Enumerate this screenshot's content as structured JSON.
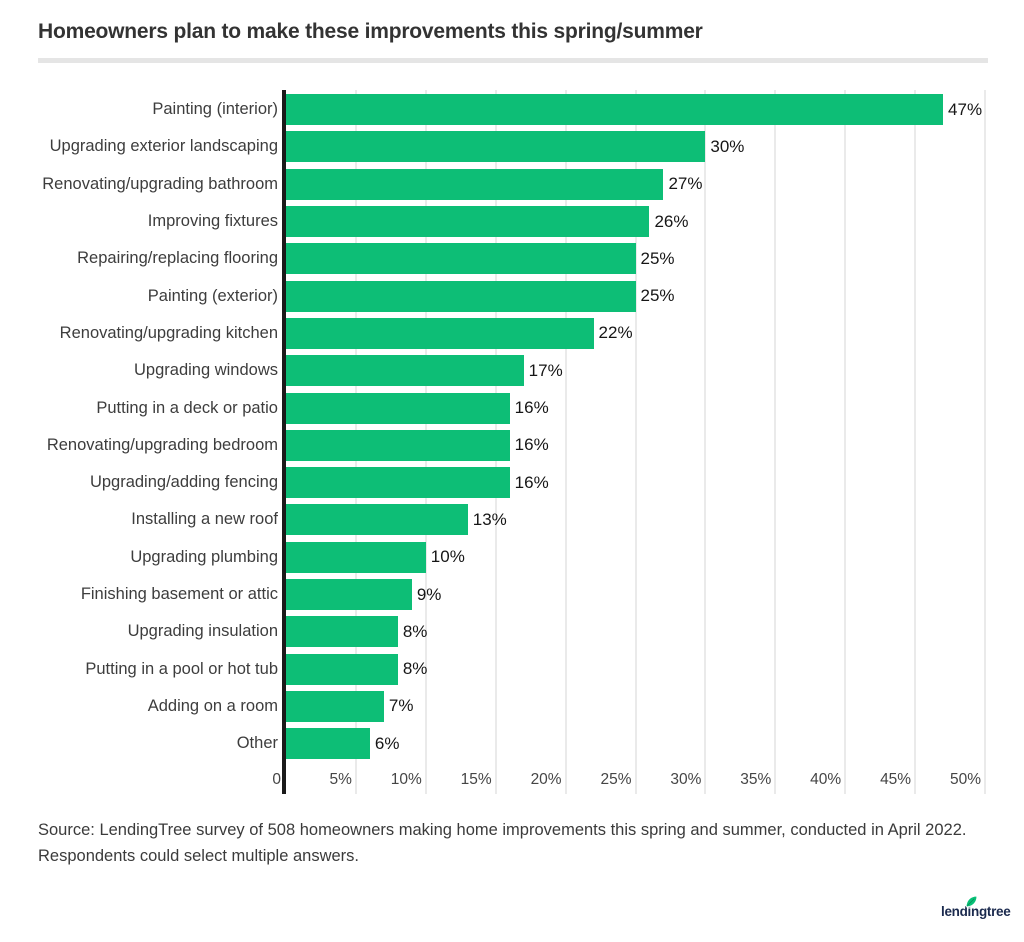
{
  "page": {
    "source_line1": "Source: LendingTree survey of 508 homeowners making home improvements this spring and summer, conducted in April 2022.",
    "source_line2": "Respondents could select multiple answers."
  },
  "logo": {
    "text": "lendingtree",
    "leaf_icon": "leaf-icon",
    "navy_color": "#1b2a4e",
    "leaf_color": "#08c177"
  },
  "chart_data": {
    "type": "bar",
    "orientation": "horizontal",
    "title": "Homeowners plan to make these improvements this spring/summer",
    "categories": [
      "Painting (interior)",
      "Upgrading exterior landscaping",
      "Renovating/upgrading bathroom",
      "Improving fixtures",
      "Repairing/replacing flooring",
      "Painting (exterior)",
      "Renovating/upgrading kitchen",
      "Upgrading windows",
      "Putting in a deck or patio",
      "Renovating/upgrading bedroom",
      "Upgrading/adding fencing",
      "Installing a new roof",
      "Upgrading plumbing",
      "Finishing basement or attic",
      "Upgrading insulation",
      "Putting in a pool or hot tub",
      "Adding on a room",
      "Other"
    ],
    "values": [
      47,
      30,
      27,
      26,
      25,
      25,
      22,
      17,
      16,
      16,
      16,
      13,
      10,
      9,
      8,
      8,
      7,
      6
    ],
    "value_suffix": "%",
    "xlabel": "",
    "ylabel": "",
    "xlim": [
      0,
      50
    ],
    "x_tick_values": [
      0,
      5,
      10,
      15,
      20,
      25,
      30,
      35,
      40,
      45,
      50
    ],
    "x_tick_labels": [
      "0",
      "5%",
      "10%",
      "15%",
      "20%",
      "25%",
      "30%",
      "35%",
      "40%",
      "45%",
      "50%"
    ],
    "bar_color": "#0dbe76",
    "axis_color": "#1a1a1a",
    "gridline_color": "#eaeaea",
    "grid": "vertical-only",
    "legend": "none"
  }
}
